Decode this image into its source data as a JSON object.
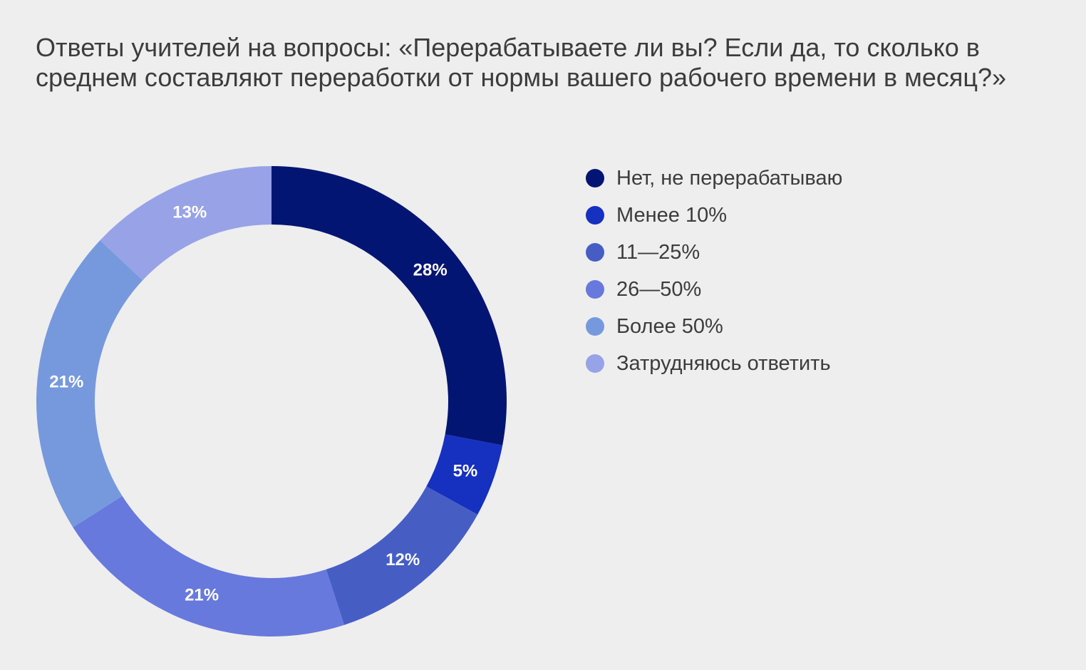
{
  "title": "Ответы учителей на вопросы: «Перерабатываете ли вы? Если да, то сколько в среднем составляют переработки от нормы вашего рабочего времени в месяц?»",
  "chart_data": {
    "type": "pie",
    "variant": "donut",
    "title": "Ответы учителей на вопросы: «Перерабатываете ли вы? Если да, то сколько в среднем составляют переработки от нормы вашего рабочего времени в месяц?»",
    "legend_position": "right",
    "slices": [
      {
        "label": "Нет, не перерабатываю",
        "value": 28,
        "display": "28%",
        "color": "#031573"
      },
      {
        "label": "Менее 10%",
        "value": 5,
        "display": "5%",
        "color": "#1630c0"
      },
      {
        "label": "11—25%",
        "value": 12,
        "display": "12%",
        "color": "#465ec4"
      },
      {
        "label": "26—50%",
        "value": 21,
        "display": "21%",
        "color": "#6779dc"
      },
      {
        "label": "Более 50%",
        "value": 21,
        "display": "21%",
        "color": "#7699de"
      },
      {
        "label": "Затрудняюсь ответить",
        "value": 13,
        "display": "13%",
        "color": "#97a3e6"
      }
    ]
  }
}
